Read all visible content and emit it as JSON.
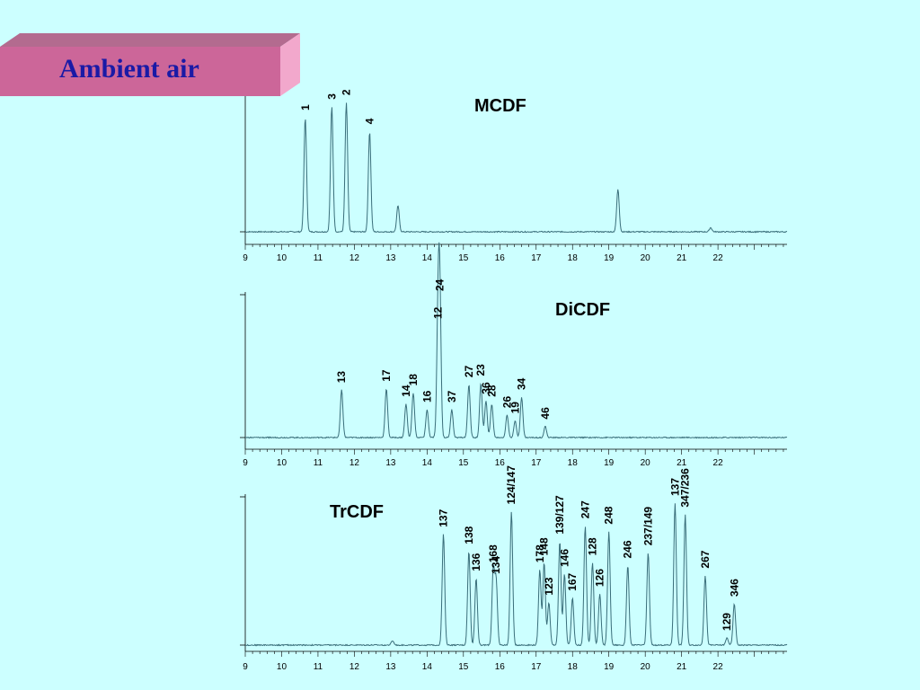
{
  "slide": {
    "title": "Ambient air"
  },
  "colors": {
    "background": "#ccffff",
    "title_box": "#cc6699",
    "title_text": "#1a1aa6",
    "trace": "#3a6e7a"
  },
  "chart_data": [
    {
      "type": "line",
      "title": "MCDF",
      "xlabel": "",
      "ylabel": "",
      "xlim": [
        9,
        23.9
      ],
      "xticks": [
        9,
        10,
        11,
        12,
        13,
        14,
        15,
        16,
        17,
        18,
        19,
        20,
        21,
        22
      ],
      "peaks": [
        {
          "x": 10.65,
          "h": 0.83,
          "label": "1"
        },
        {
          "x": 11.38,
          "h": 0.91,
          "label": "3"
        },
        {
          "x": 11.78,
          "h": 0.94,
          "label": "2"
        },
        {
          "x": 12.42,
          "h": 0.73,
          "label": "4"
        },
        {
          "x": 13.2,
          "h": 0.19,
          "label": ""
        },
        {
          "x": 19.25,
          "h": 0.31,
          "label": ""
        },
        {
          "x": 21.8,
          "h": 0.03,
          "label": ""
        }
      ]
    },
    {
      "type": "line",
      "title": "DiCDF",
      "xlabel": "",
      "ylabel": "",
      "xlim": [
        9,
        23.9
      ],
      "xticks": [
        9,
        10,
        11,
        12,
        13,
        14,
        15,
        16,
        17,
        18,
        19,
        20,
        21,
        22
      ],
      "peaks": [
        {
          "x": 11.65,
          "h": 0.34,
          "label": "13"
        },
        {
          "x": 12.88,
          "h": 0.35,
          "label": "17"
        },
        {
          "x": 13.42,
          "h": 0.24,
          "label": "14"
        },
        {
          "x": 13.62,
          "h": 0.32,
          "label": "18"
        },
        {
          "x": 14.0,
          "h": 0.2,
          "label": "16"
        },
        {
          "x": 14.3,
          "h": 0.8,
          "label": "12"
        },
        {
          "x": 14.35,
          "h": 1.0,
          "label": "24"
        },
        {
          "x": 14.68,
          "h": 0.2,
          "label": "37"
        },
        {
          "x": 15.15,
          "h": 0.38,
          "label": "27"
        },
        {
          "x": 15.48,
          "h": 0.39,
          "label": "23"
        },
        {
          "x": 15.62,
          "h": 0.26,
          "label": "36"
        },
        {
          "x": 15.78,
          "h": 0.24,
          "label": "28"
        },
        {
          "x": 16.2,
          "h": 0.16,
          "label": "26"
        },
        {
          "x": 16.42,
          "h": 0.12,
          "label": "19"
        },
        {
          "x": 16.6,
          "h": 0.29,
          "label": "34"
        },
        {
          "x": 17.25,
          "h": 0.08,
          "label": "46"
        }
      ]
    },
    {
      "type": "line",
      "title": "TrCDF",
      "xlabel": "",
      "ylabel": "",
      "xlim": [
        9,
        23.9
      ],
      "xticks": [
        9,
        10,
        11,
        12,
        13,
        14,
        15,
        16,
        17,
        18,
        19,
        20,
        21,
        22
      ],
      "peaks": [
        {
          "x": 13.05,
          "h": 0.03,
          "label": ""
        },
        {
          "x": 14.45,
          "h": 0.78,
          "label": "137"
        },
        {
          "x": 15.15,
          "h": 0.66,
          "label": "138"
        },
        {
          "x": 15.35,
          "h": 0.47,
          "label": "136"
        },
        {
          "x": 15.82,
          "h": 0.53,
          "label": "168"
        },
        {
          "x": 15.9,
          "h": 0.45,
          "label": "134"
        },
        {
          "x": 16.32,
          "h": 0.94,
          "label": "124/147"
        },
        {
          "x": 17.1,
          "h": 0.53,
          "label": "178"
        },
        {
          "x": 17.22,
          "h": 0.58,
          "label": "148"
        },
        {
          "x": 17.35,
          "h": 0.3,
          "label": "123"
        },
        {
          "x": 17.65,
          "h": 0.73,
          "label": "139/127"
        },
        {
          "x": 17.78,
          "h": 0.5,
          "label": "146"
        },
        {
          "x": 18.0,
          "h": 0.33,
          "label": "167"
        },
        {
          "x": 18.35,
          "h": 0.84,
          "label": "247"
        },
        {
          "x": 18.55,
          "h": 0.58,
          "label": "128"
        },
        {
          "x": 18.75,
          "h": 0.36,
          "label": "126"
        },
        {
          "x": 19.0,
          "h": 0.8,
          "label": "248"
        },
        {
          "x": 19.52,
          "h": 0.56,
          "label": "246"
        },
        {
          "x": 20.08,
          "h": 0.65,
          "label": "237/149"
        },
        {
          "x": 20.82,
          "h": 1.0,
          "label": "137"
        },
        {
          "x": 21.1,
          "h": 0.92,
          "label": "347/236"
        },
        {
          "x": 21.65,
          "h": 0.49,
          "label": "267"
        },
        {
          "x": 22.45,
          "h": 0.29,
          "label": "346"
        },
        {
          "x": 22.25,
          "h": 0.05,
          "label": "129"
        }
      ]
    }
  ]
}
